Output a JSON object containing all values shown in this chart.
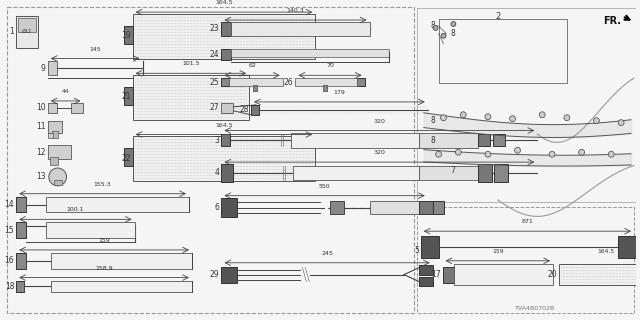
{
  "bg": "#f5f5f5",
  "lc": "#444444",
  "tc": "#333333",
  "part_code": "TVA4B0702B",
  "dashed_border": "#999999",
  "dim_line_color": "#444444"
}
